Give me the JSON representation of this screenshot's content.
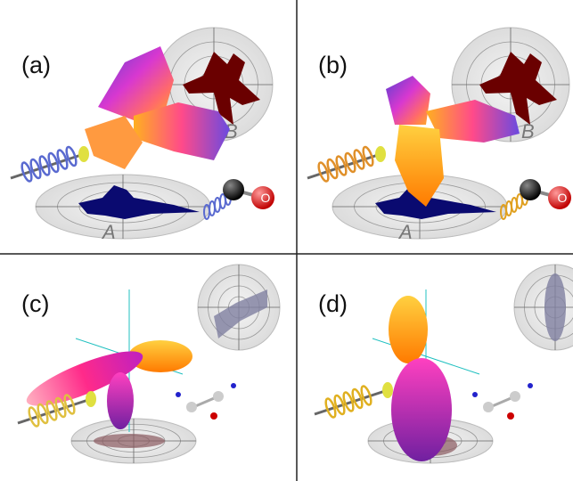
{
  "panels": [
    {
      "label": "(a)",
      "plane_labels": [
        "A",
        "B"
      ],
      "atom_label": "O"
    },
    {
      "label": "(b)",
      "plane_labels": [
        "A",
        "B"
      ],
      "atom_label": "O"
    },
    {
      "label": "(c)"
    },
    {
      "label": "(d)"
    }
  ]
}
